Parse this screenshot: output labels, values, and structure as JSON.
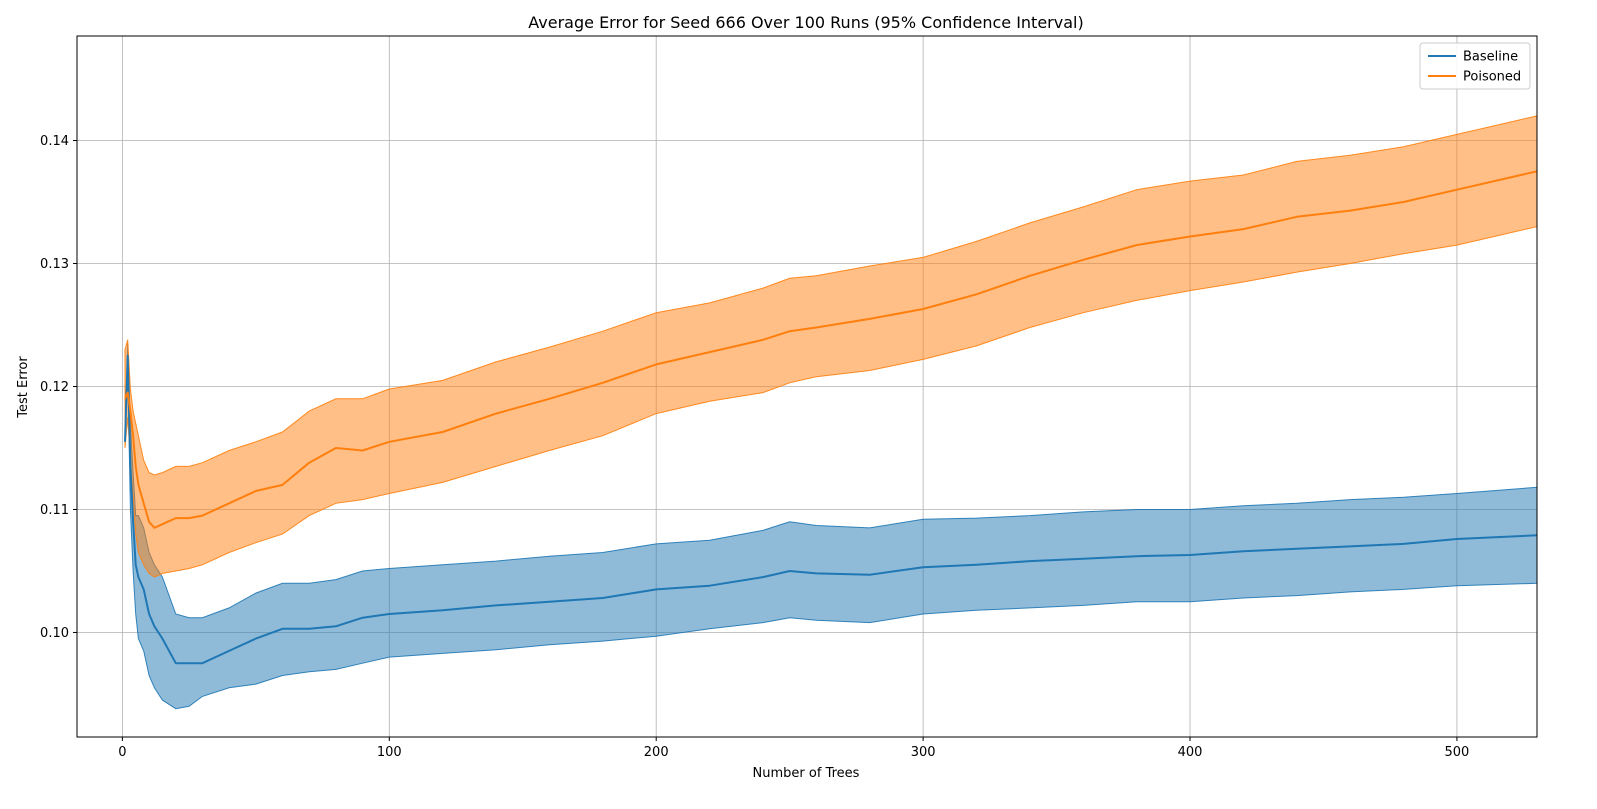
{
  "chart_data": {
    "type": "line",
    "title": "Average Error for Seed 666 Over 100 Runs (95% Confidence Interval)",
    "xlabel": "Number of Trees",
    "ylabel": "Test Error",
    "xlim": [
      -17,
      530
    ],
    "ylim": [
      0.0915,
      0.1485
    ],
    "x_ticks": [
      0,
      100,
      200,
      300,
      400,
      500
    ],
    "y_ticks": [
      0.1,
      0.11,
      0.12,
      0.13,
      0.14
    ],
    "x_tick_labels": [
      "0",
      "100",
      "200",
      "300",
      "400",
      "500"
    ],
    "y_tick_labels": [
      "0.10",
      "0.11",
      "0.12",
      "0.13",
      "0.14"
    ],
    "grid": true,
    "legend_position": "top-right",
    "series": [
      {
        "name": "Baseline",
        "color": "#1f77b4",
        "band_color": "#1f77b4",
        "x": [
          1,
          2,
          3,
          4,
          5,
          6,
          8,
          10,
          12,
          15,
          20,
          25,
          30,
          40,
          50,
          60,
          70,
          80,
          90,
          100,
          120,
          140,
          160,
          180,
          200,
          220,
          240,
          250,
          260,
          280,
          300,
          320,
          340,
          360,
          380,
          400,
          420,
          440,
          460,
          480,
          500,
          530
        ],
        "values": [
          0.1155,
          0.1225,
          0.1135,
          0.109,
          0.1055,
          0.1045,
          0.1035,
          0.1015,
          0.1005,
          0.0995,
          0.0975,
          0.0975,
          0.0975,
          0.0985,
          0.0995,
          0.1003,
          0.1003,
          0.1005,
          0.1012,
          0.1015,
          0.1018,
          0.1022,
          0.1025,
          0.1028,
          0.1035,
          0.1038,
          0.1045,
          0.105,
          0.1048,
          0.1047,
          0.1053,
          0.1055,
          0.1058,
          0.106,
          0.1062,
          0.1063,
          0.1066,
          0.1068,
          0.107,
          0.1072,
          0.1076,
          0.1079
        ],
        "lower": [
          0.1155,
          0.1215,
          0.11,
          0.105,
          0.1015,
          0.0995,
          0.0985,
          0.0965,
          0.0955,
          0.0945,
          0.0938,
          0.094,
          0.0948,
          0.0955,
          0.0958,
          0.0965,
          0.0968,
          0.097,
          0.0975,
          0.098,
          0.0983,
          0.0986,
          0.099,
          0.0993,
          0.0997,
          0.1003,
          0.1008,
          0.1012,
          0.101,
          0.1008,
          0.1015,
          0.1018,
          0.102,
          0.1022,
          0.1025,
          0.1025,
          0.1028,
          0.103,
          0.1033,
          0.1035,
          0.1038,
          0.104
        ],
        "upper": [
          0.1155,
          0.1235,
          0.117,
          0.113,
          0.1095,
          0.1095,
          0.1085,
          0.1065,
          0.1055,
          0.1045,
          0.1015,
          0.1012,
          0.1012,
          0.102,
          0.1032,
          0.104,
          0.104,
          0.1043,
          0.105,
          0.1052,
          0.1055,
          0.1058,
          0.1062,
          0.1065,
          0.1072,
          0.1075,
          0.1083,
          0.109,
          0.1087,
          0.1085,
          0.1092,
          0.1093,
          0.1095,
          0.1098,
          0.11,
          0.11,
          0.1103,
          0.1105,
          0.1108,
          0.111,
          0.1113,
          0.1118
        ]
      },
      {
        "name": "Poisoned",
        "color": "#ff7f0e",
        "band_color": "#ff7f0e",
        "x": [
          1,
          2,
          3,
          4,
          5,
          6,
          8,
          10,
          12,
          15,
          20,
          25,
          30,
          40,
          50,
          60,
          70,
          80,
          90,
          100,
          120,
          140,
          160,
          180,
          200,
          220,
          240,
          250,
          260,
          280,
          300,
          320,
          340,
          360,
          380,
          400,
          420,
          440,
          460,
          480,
          500,
          530
        ],
        "values": [
          0.119,
          0.1195,
          0.118,
          0.116,
          0.1135,
          0.112,
          0.1105,
          0.109,
          0.1085,
          0.1088,
          0.1093,
          0.1093,
          0.1095,
          0.1105,
          0.1115,
          0.112,
          0.1138,
          0.115,
          0.1148,
          0.1155,
          0.1163,
          0.1178,
          0.119,
          0.1203,
          0.1218,
          0.1228,
          0.1238,
          0.1245,
          0.1248,
          0.1255,
          0.1263,
          0.1275,
          0.129,
          0.1303,
          0.1315,
          0.1322,
          0.1328,
          0.1338,
          0.1343,
          0.135,
          0.136,
          0.1375
        ],
        "lower": [
          0.115,
          0.1175,
          0.114,
          0.111,
          0.108,
          0.1065,
          0.1055,
          0.1048,
          0.1045,
          0.1048,
          0.105,
          0.1052,
          0.1055,
          0.1065,
          0.1073,
          0.108,
          0.1095,
          0.1105,
          0.1108,
          0.1113,
          0.1122,
          0.1135,
          0.1148,
          0.116,
          0.1178,
          0.1188,
          0.1195,
          0.1203,
          0.1208,
          0.1213,
          0.1222,
          0.1233,
          0.1248,
          0.126,
          0.127,
          0.1278,
          0.1285,
          0.1293,
          0.13,
          0.1308,
          0.1315,
          0.133
        ],
        "upper": [
          0.123,
          0.1238,
          0.1198,
          0.118,
          0.117,
          0.116,
          0.114,
          0.113,
          0.1128,
          0.113,
          0.1135,
          0.1135,
          0.1138,
          0.1148,
          0.1155,
          0.1163,
          0.118,
          0.119,
          0.119,
          0.1198,
          0.1205,
          0.122,
          0.1232,
          0.1245,
          0.126,
          0.1268,
          0.128,
          0.1288,
          0.129,
          0.1298,
          0.1305,
          0.1318,
          0.1333,
          0.1346,
          0.136,
          0.1367,
          0.1372,
          0.1383,
          0.1388,
          0.1395,
          0.1405,
          0.142
        ]
      }
    ]
  }
}
